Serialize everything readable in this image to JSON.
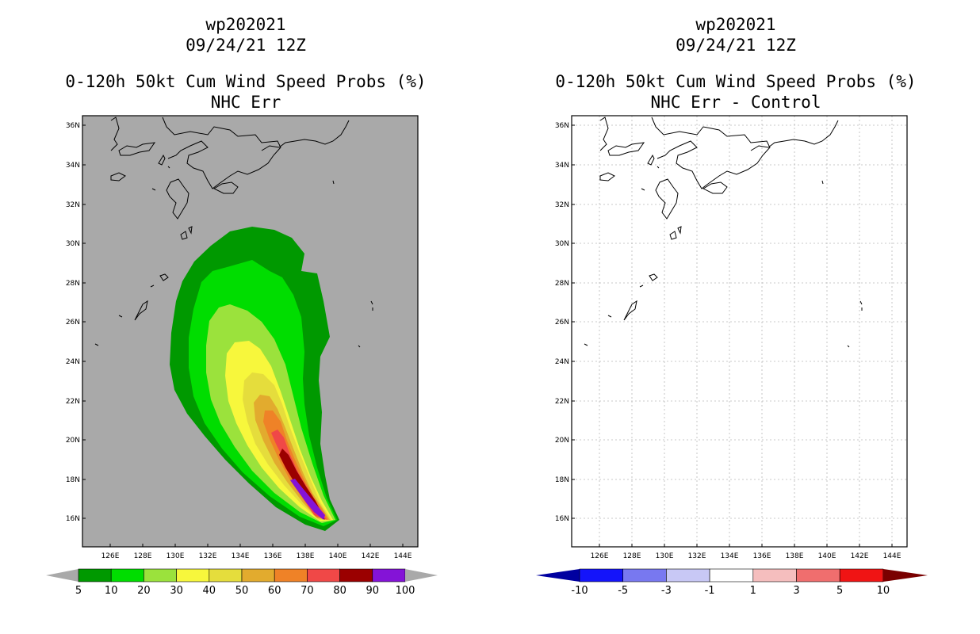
{
  "left_panel": {
    "title_line1": "wp202021",
    "title_line2": "09/24/21 12Z",
    "title_line3": "0-120h 50kt Cum Wind Speed Probs (%)",
    "title_line4": "NHC Err"
  },
  "right_panel": {
    "title_line1": "wp202021",
    "title_line2": "09/24/21 12Z",
    "title_line3": "0-120h 50kt Cum Wind Speed Probs (%)",
    "title_line4": "NHC Err - Control"
  },
  "axes": {
    "lat_labels": [
      "36N",
      "34N",
      "32N",
      "30N",
      "28N",
      "26N",
      "24N",
      "22N",
      "20N",
      "18N",
      "16N"
    ],
    "lon_labels": [
      "126E",
      "128E",
      "130E",
      "132E",
      "134E",
      "136E",
      "138E",
      "140E",
      "142E",
      "144E"
    ]
  },
  "colors": {
    "map_background": "#a9a9a9",
    "prob_levels": [
      "#009900",
      "#00dd00",
      "#9be23c",
      "#f7f73c",
      "#e5dd3c",
      "#e2ab2e",
      "#ef8227",
      "#f04847",
      "#9b0000",
      "#8413d7"
    ],
    "diff_levels": [
      "#1414fa",
      "#7878f0",
      "#c8c8f5",
      "#ffffff",
      "#f5bebe",
      "#f06e6e",
      "#f01414"
    ],
    "diff_low_end": "#0000a0",
    "diff_high_end": "#7a0000"
  },
  "left_colorbar_labels": [
    "5",
    "10",
    "20",
    "30",
    "40",
    "50",
    "60",
    "70",
    "80",
    "90",
    "100"
  ],
  "right_colorbar_labels": [
    "-10",
    "-5",
    "-3",
    "-1",
    "1",
    "3",
    "5",
    "10"
  ]
}
